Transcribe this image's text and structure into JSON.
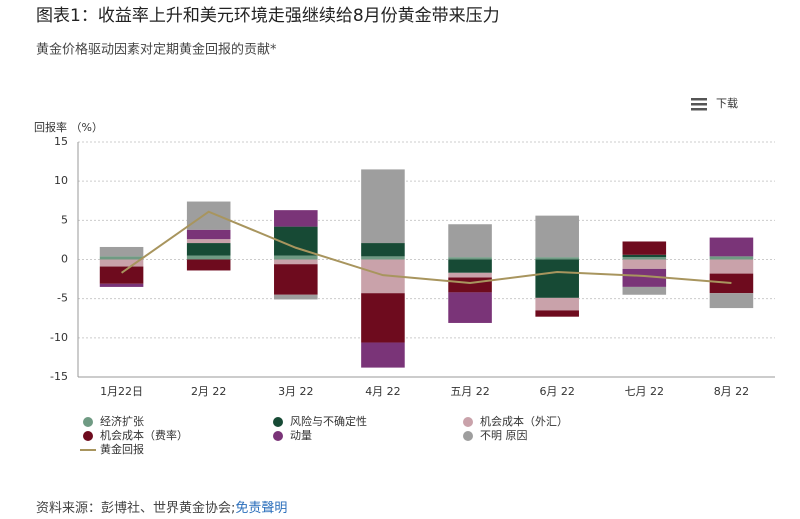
{
  "chart_data": {
    "type": "bar",
    "stacked": true,
    "title": "图表1：收益率上升和美元环境走强继续给8月份黄金带来压力",
    "subtitle": "黄金价格驱动因素对定期黄金回报的贡献*",
    "y_label": "回报率 （%）",
    "menu": "下载",
    "source": "资料来源：彭博社、世界黄金协会;",
    "disclaimer": "免责聲明",
    "categories": [
      "1月22日",
      "2月 22",
      "3月 22",
      "4月 22",
      "五月 22",
      "6月 22",
      "七月 22",
      "8月 22"
    ],
    "ylim": [
      -15,
      15
    ],
    "yticks": [
      15,
      10,
      5,
      0,
      -5,
      -10,
      -15
    ],
    "grid": true,
    "series": [
      {
        "name": "经济扩张",
        "color": "#6f9a83",
        "values": [
          0.4,
          0.5,
          0.5,
          0.4,
          0.3,
          0.3,
          0.3,
          0.4
        ]
      },
      {
        "name": "风险与不确定性",
        "color": "#174a35",
        "values": [
          0,
          1.6,
          3.7,
          1.7,
          -1.7,
          -4.9,
          0.3,
          0
        ]
      },
      {
        "name": "机会成本（外汇）",
        "color": "#c9a2aa",
        "values": [
          -0.9,
          0.5,
          -0.6,
          -4.3,
          -0.6,
          -1.6,
          -1.2,
          -1.8
        ]
      },
      {
        "name": "机会成本（费率）",
        "color": "#6e0b1e",
        "values": [
          -2.2,
          -1.4,
          -3.9,
          -6.3,
          -1.9,
          -0.8,
          1.7,
          -2.5
        ]
      },
      {
        "name": "动量",
        "color": "#7a3478",
        "values": [
          -0.4,
          1.2,
          2.1,
          -3.2,
          -3.9,
          0,
          -2.3,
          2.4
        ]
      },
      {
        "name": "不明 原因",
        "color": "#9e9e9e",
        "values": [
          1.2,
          3.6,
          -0.6,
          9.4,
          4.2,
          5.3,
          -1.0,
          -1.9
        ]
      },
      {
        "name": "黄金回报",
        "type": "line",
        "color": "#a8955e",
        "values": [
          -1.7,
          6.1,
          1.5,
          -2.0,
          -3.0,
          -1.6,
          -2.1,
          -3.0
        ]
      }
    ]
  }
}
